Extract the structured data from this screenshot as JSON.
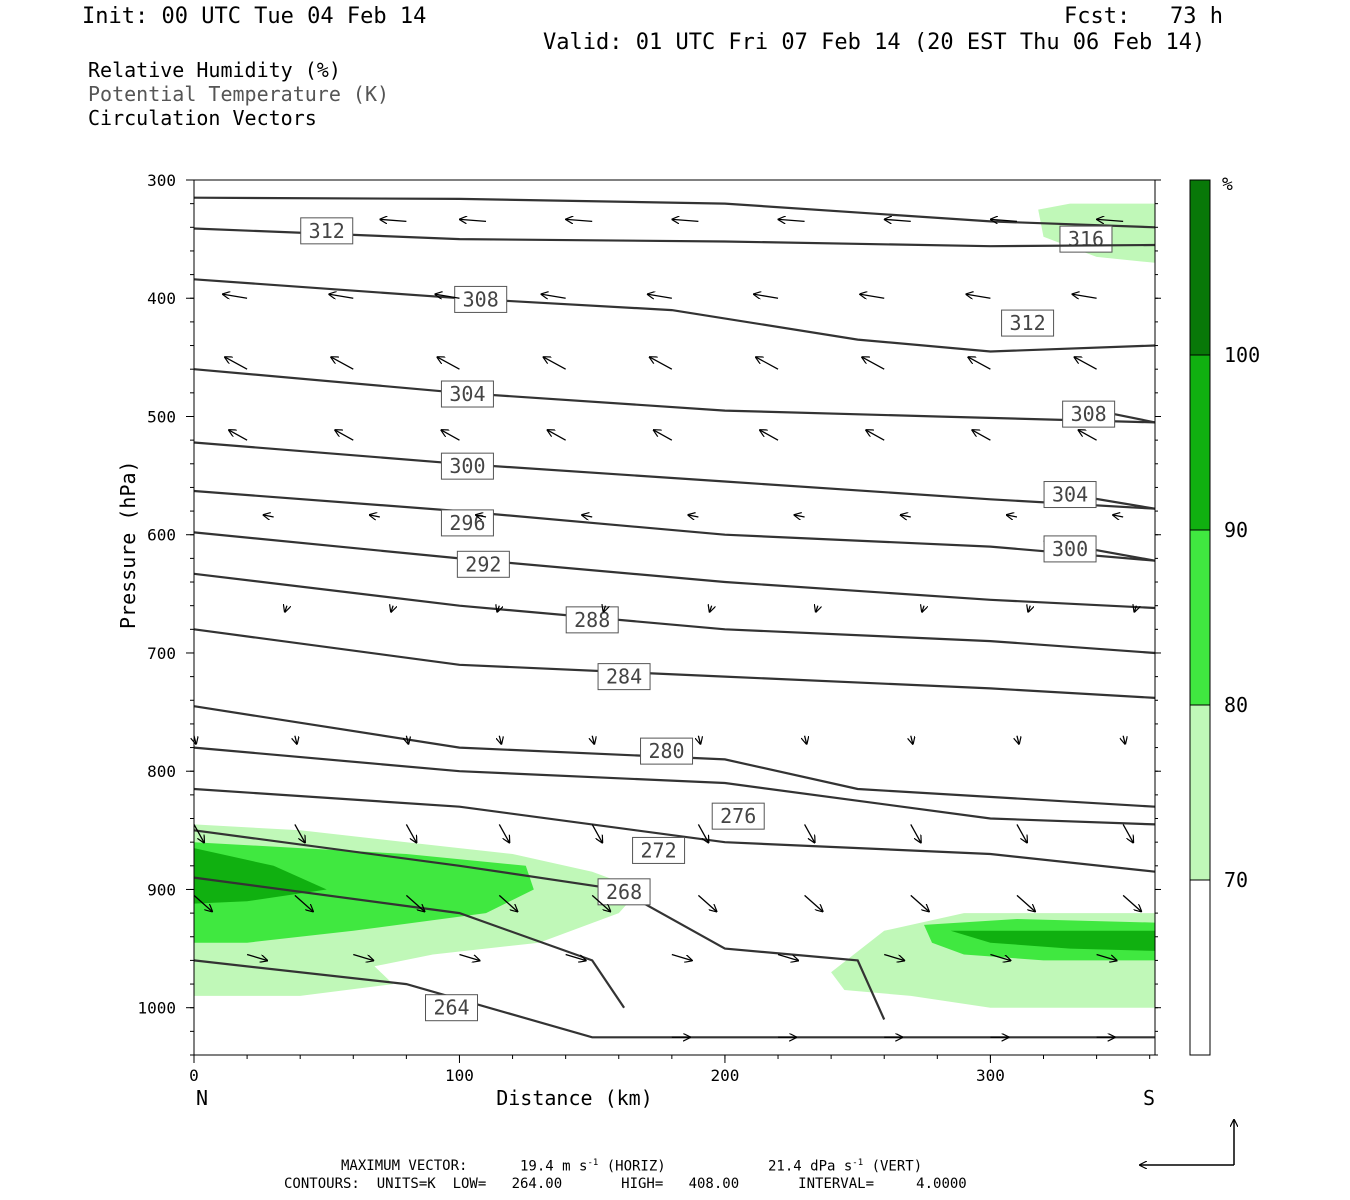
{
  "header": {
    "init": "Init: 00 UTC Tue 04 Feb 14",
    "fcst": "Fcst:   73 h",
    "valid": "Valid: 01 UTC Fri 07 Feb 14 (20 EST Thu 06 Feb 14)",
    "fields": [
      "Relative Humidity (%)",
      "Potential Temperature (K)",
      "Circulation Vectors"
    ]
  },
  "footer": {
    "maxvec_label": "MAXIMUM VECTOR:",
    "maxvec_h": "19.4 m s",
    "maxvec_h_exp": "-1",
    "maxvec_h_tag": " (HORIZ)",
    "maxvec_v": "21.4 dPa s",
    "maxvec_v_exp": "-1",
    "maxvec_v_tag": " (VERT)",
    "contours": "CONTOURS:  UNITS=K  LOW=   264.00       HIGH=   408.00       INTERVAL=     4.0000"
  },
  "colors": {
    "rh70": "#c0f8b8",
    "rh80": "#40e840",
    "rh90": "#10b010",
    "rh100": "#087808",
    "isentrope": "#333333",
    "isentrope_label_border": "#555555"
  },
  "chart_data": {
    "type": "cross-section",
    "xlabel": "Distance (km)",
    "ylabel": "Pressure (hPa)",
    "x_ticks": [
      0,
      100,
      200,
      300
    ],
    "y_ticks": [
      300,
      400,
      500,
      600,
      700,
      800,
      900,
      1000
    ],
    "xlim": [
      0,
      362
    ],
    "ylim": [
      300,
      1040
    ],
    "y_scale": "linear",
    "x_end_labels": {
      "left": "N",
      "right": "S"
    },
    "colorbar": {
      "unit": "%",
      "levels": [
        70,
        80,
        90,
        100
      ],
      "colors": [
        "#ffffff",
        "#c0f8b8",
        "#40e840",
        "#10b010",
        "#087808"
      ]
    },
    "isentropes": [
      {
        "theta": 316,
        "points": [
          [
            0,
            315
          ],
          [
            100,
            316
          ],
          [
            200,
            320
          ],
          [
            300,
            335
          ],
          [
            362,
            340
          ]
        ],
        "label_at": [
          336,
          350
        ]
      },
      {
        "theta": 312,
        "points": [
          [
            0,
            341
          ],
          [
            100,
            350
          ],
          [
            200,
            352
          ],
          [
            300,
            356
          ],
          [
            362,
            355
          ]
        ],
        "label_at": [
          50,
          343
        ]
      },
      {
        "theta": 312,
        "points": [
          [
            0,
            384
          ],
          [
            100,
            400
          ],
          [
            180,
            410
          ],
          [
            250,
            435
          ],
          [
            300,
            445
          ],
          [
            362,
            440
          ]
        ],
        "label_at": [
          314,
          421
        ]
      },
      {
        "theta": 308,
        "points": [
          [
            0,
            460
          ],
          [
            100,
            480
          ],
          [
            200,
            495
          ],
          [
            280,
            500
          ],
          [
            362,
            505
          ]
        ],
        "label_at": [
          108,
          401
        ]
      },
      {
        "theta": 308,
        "points": [
          [
            340,
            495
          ],
          [
            362,
            505
          ]
        ],
        "label_at": [
          337,
          498
        ]
      },
      {
        "theta": 304,
        "points": [
          [
            0,
            522
          ],
          [
            100,
            540
          ],
          [
            200,
            555
          ],
          [
            300,
            570
          ],
          [
            362,
            578
          ]
        ],
        "label_at": [
          103,
          481
        ]
      },
      {
        "theta": 304,
        "points": [
          [
            330,
            566
          ],
          [
            362,
            578
          ]
        ],
        "label_at": [
          330,
          566
        ]
      },
      {
        "theta": 300,
        "points": [
          [
            0,
            563
          ],
          [
            100,
            580
          ],
          [
            200,
            600
          ],
          [
            300,
            610
          ],
          [
            362,
            622
          ]
        ],
        "label_at": [
          103,
          542
        ]
      },
      {
        "theta": 300,
        "points": [
          [
            320,
            605
          ],
          [
            362,
            622
          ]
        ],
        "label_at": [
          330,
          612
        ]
      },
      {
        "theta": 296,
        "points": [
          [
            0,
            598
          ],
          [
            100,
            620
          ],
          [
            200,
            640
          ],
          [
            300,
            655
          ],
          [
            362,
            662
          ]
        ],
        "label_at": [
          103,
          590
        ]
      },
      {
        "theta": 292,
        "points": [
          [
            0,
            633
          ],
          [
            100,
            660
          ],
          [
            200,
            680
          ],
          [
            300,
            690
          ],
          [
            362,
            700
          ]
        ],
        "label_at": [
          109,
          625
        ]
      },
      {
        "theta": 288,
        "points": [
          [
            0,
            680
          ],
          [
            100,
            710
          ],
          [
            200,
            720
          ],
          [
            300,
            730
          ],
          [
            362,
            738
          ]
        ],
        "label_at": [
          150,
          672
        ]
      },
      {
        "theta": 284,
        "points": [
          [
            0,
            745
          ],
          [
            100,
            780
          ],
          [
            200,
            790
          ],
          [
            250,
            815
          ],
          [
            362,
            830
          ]
        ],
        "label_at": [
          162,
          720
        ]
      },
      {
        "theta": 280,
        "points": [
          [
            0,
            780
          ],
          [
            100,
            800
          ],
          [
            200,
            810
          ],
          [
            300,
            840
          ],
          [
            362,
            845
          ]
        ],
        "label_at": [
          178,
          783
        ]
      },
      {
        "theta": 276,
        "points": [
          [
            0,
            815
          ],
          [
            100,
            830
          ],
          [
            200,
            860
          ],
          [
            300,
            870
          ],
          [
            362,
            885
          ]
        ],
        "label_at": [
          205,
          838
        ]
      },
      {
        "theta": 272,
        "points": [
          [
            0,
            850
          ],
          [
            100,
            880
          ],
          [
            160,
            900
          ],
          [
            200,
            950
          ],
          [
            250,
            960
          ],
          [
            260,
            1010
          ]
        ],
        "label_at": [
          175,
          867
        ]
      },
      {
        "theta": 268,
        "points": [
          [
            0,
            890
          ],
          [
            100,
            920
          ],
          [
            150,
            960
          ],
          [
            162,
            1000
          ]
        ],
        "label_at": [
          162,
          902
        ]
      },
      {
        "theta": 264,
        "points": [
          [
            0,
            960
          ],
          [
            80,
            980
          ],
          [
            150,
            1025
          ],
          [
            362,
            1025
          ]
        ],
        "label_at": [
          97,
          1000
        ]
      }
    ]
  }
}
